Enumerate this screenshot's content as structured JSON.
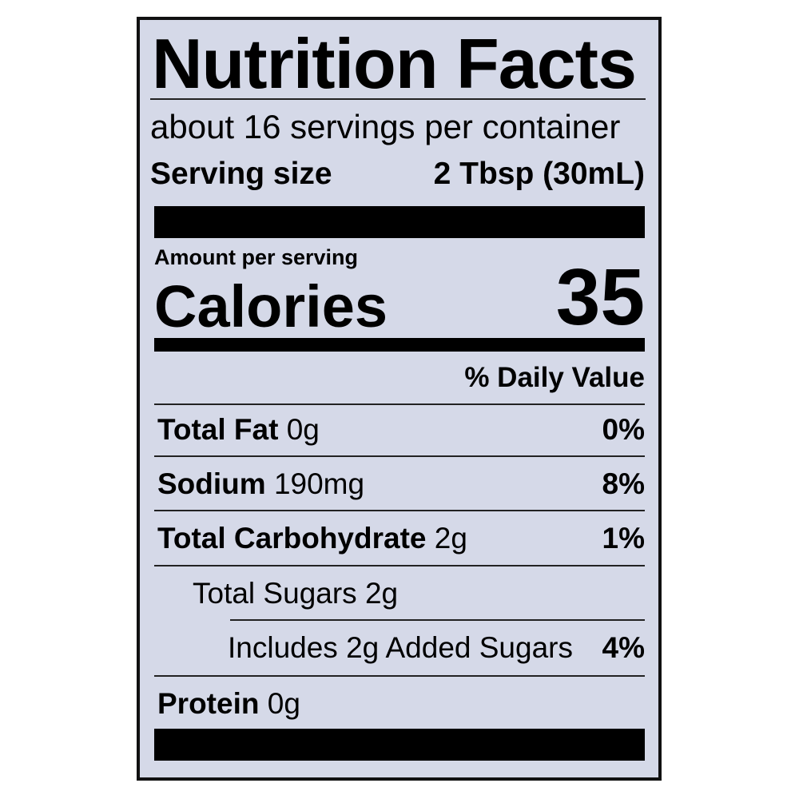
{
  "title": "Nutrition Facts",
  "servings_per_container": "about 16 servings per container",
  "serving_size": {
    "label": "Serving size",
    "value": "2 Tbsp (30mL)"
  },
  "amount_per_serving": "Amount per serving",
  "calories": {
    "label": "Calories",
    "value": "35"
  },
  "daily_value_header": "% Daily Value",
  "nutrients": [
    {
      "name": "Total Fat",
      "amount": "0g",
      "dv": "0%"
    },
    {
      "name": "Sodium",
      "amount": "190mg",
      "dv": "8%"
    },
    {
      "name": "Total Carbohydrate",
      "amount": "2g",
      "dv": "1%"
    },
    {
      "name": "Total Sugars 2g",
      "amount": "",
      "dv": ""
    },
    {
      "name": "Includes 2g Added Sugars",
      "amount": "",
      "dv": "4%"
    },
    {
      "name": "Protein",
      "amount": "0g",
      "dv": ""
    }
  ],
  "colors": {
    "background": "#d5d9e8",
    "ink": "#000000"
  }
}
